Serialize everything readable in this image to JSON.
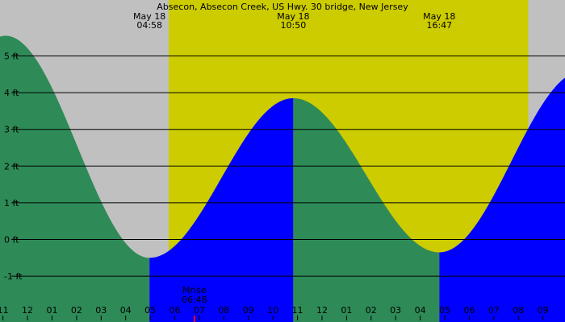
{
  "chart_data": {
    "type": "area",
    "title": "Absecon, Absecon Creek, US Hwy. 30 bridge, New Jersey",
    "y_unit": "ft",
    "ylim": [
      -1.5,
      5.6
    ],
    "y_ticks": [
      {
        "value": 5,
        "label": "5 ft"
      },
      {
        "value": 4,
        "label": "4 ft"
      },
      {
        "value": 3,
        "label": "3 ft"
      },
      {
        "value": 2,
        "label": "2 ft"
      },
      {
        "value": 1,
        "label": "1 ft"
      },
      {
        "value": 0,
        "label": "0 ft"
      },
      {
        "value": -1,
        "label": "-1 ft"
      }
    ],
    "x_range_hours": [
      -1.12,
      21.9
    ],
    "x_ticks": [
      "11",
      "12",
      "01",
      "02",
      "03",
      "04",
      "05",
      "06",
      "07",
      "08",
      "09",
      "10",
      "11",
      "12",
      "01",
      "02",
      "03",
      "04",
      "05",
      "06",
      "07",
      "08",
      "09"
    ],
    "daylight_hours": [
      5.75,
      20.4
    ],
    "events": [
      {
        "date": "May 18",
        "time": "04:58",
        "hour": 4.97,
        "height": -0.5,
        "type": "low"
      },
      {
        "date": "May 18",
        "time": "10:50",
        "hour": 10.83,
        "height": 3.85,
        "type": "high"
      },
      {
        "date": "May 18",
        "time": "16:47",
        "hour": 16.78,
        "height": -0.35,
        "type": "low"
      }
    ],
    "start_height": 5.5,
    "end_height": 4.5,
    "moon_event": {
      "label": "Mrise",
      "time": "06:48",
      "hour": 6.8
    },
    "colors": {
      "night": "#c0c0c0",
      "day": "#cccc00",
      "falling": "#2e8b57",
      "rising": "#0000ff",
      "gridline": "#000000",
      "moon_marker": "#ff0000"
    },
    "grid": true
  }
}
